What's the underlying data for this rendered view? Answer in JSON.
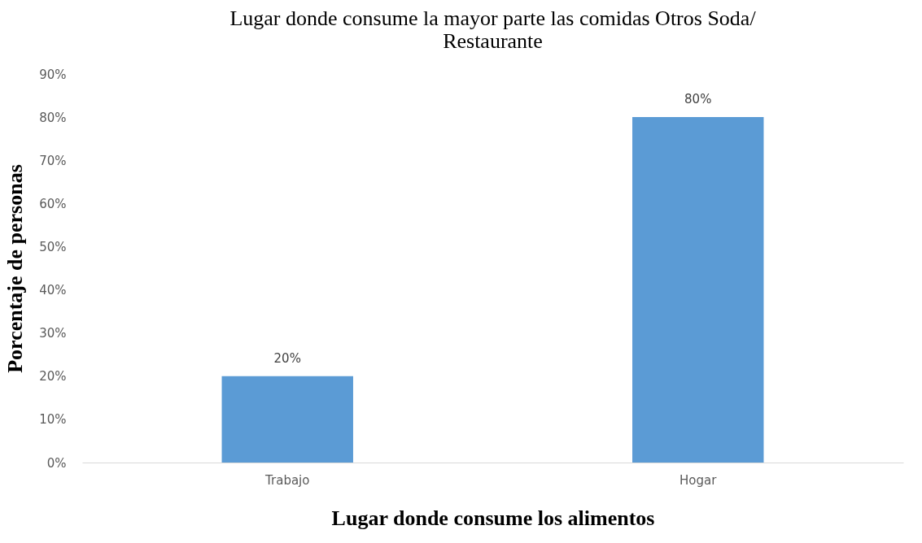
{
  "chart_data": {
    "type": "bar",
    "title": "Lugar donde consume la mayor parte las comidas Otros Soda/\nRestaurante",
    "xlabel": "Lugar donde consume los alimentos",
    "ylabel": "Porcentaje de personas",
    "categories": [
      "Trabajo",
      "Hogar"
    ],
    "values": [
      20,
      80
    ],
    "color": "#5b9bd5",
    "value_labels": [
      "20%",
      "80%"
    ],
    "ylim": [
      0,
      90
    ],
    "yticks": [
      {
        "value": 0,
        "label": "0%"
      },
      {
        "value": 10,
        "label": "10%"
      },
      {
        "value": 20,
        "label": "20%"
      },
      {
        "value": 30,
        "label": "30%"
      },
      {
        "value": 40,
        "label": "40%"
      },
      {
        "value": 50,
        "label": "50%"
      },
      {
        "value": 60,
        "label": "60%"
      },
      {
        "value": 70,
        "label": "70%"
      },
      {
        "value": 80,
        "label": "80%"
      },
      {
        "value": 90,
        "label": "90%"
      }
    ],
    "grid": false
  }
}
